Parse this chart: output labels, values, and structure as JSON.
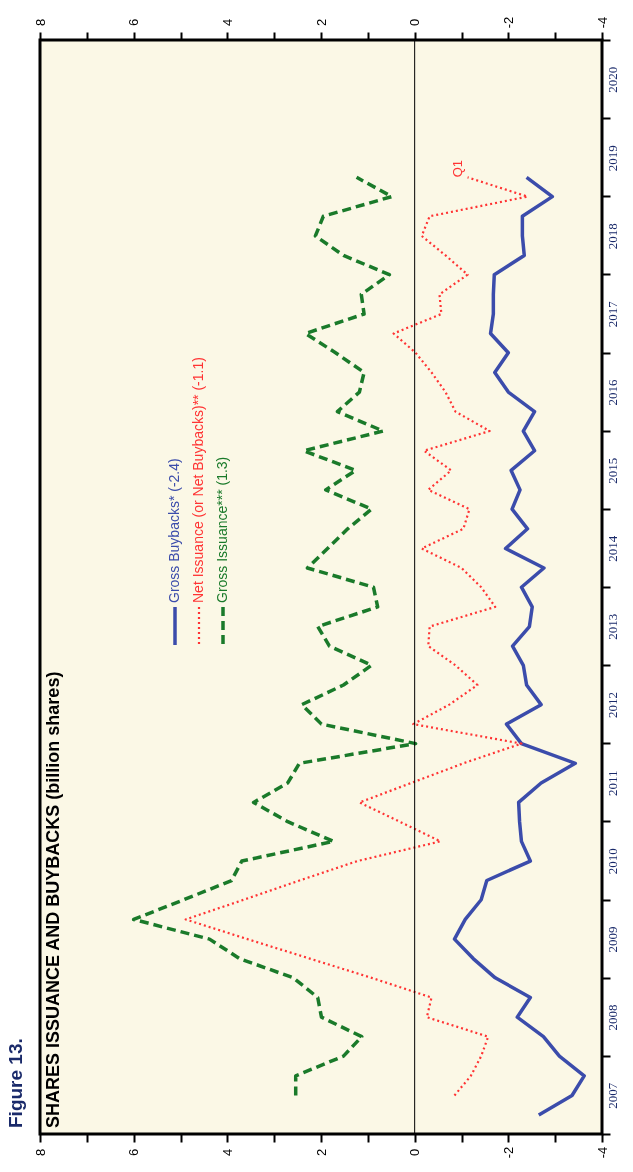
{
  "chart_data": {
    "type": "line",
    "title": "Figure 13.",
    "subtitle": "SHARES ISSUANCE AND BUYBACKS (billion shares)",
    "x": [
      "2007-03-31",
      "2007-06-30",
      "2007-09-30",
      "2007-12-31",
      "2008-03-31",
      "2008-06-30",
      "2008-09-30",
      "2008-12-31",
      "2009-03-31",
      "2009-06-30",
      "2009-09-30",
      "2009-12-31",
      "2010-03-31",
      "2010-06-30",
      "2010-09-30",
      "2010-12-31",
      "2011-03-31",
      "2011-06-30",
      "2011-09-30",
      "2011-12-31",
      "2012-03-31",
      "2012-06-30",
      "2012-09-30",
      "2012-12-31",
      "2013-03-31",
      "2013-06-30",
      "2013-09-30",
      "2013-12-31",
      "2014-03-31",
      "2014-06-30",
      "2014-09-30",
      "2014-12-31",
      "2015-03-31",
      "2015-06-30",
      "2015-09-30",
      "2015-12-31",
      "2016-03-31",
      "2016-06-30",
      "2016-09-30",
      "2016-12-31",
      "2017-03-31",
      "2017-06-30",
      "2017-09-30",
      "2017-12-31",
      "2018-03-31",
      "2018-06-30",
      "2018-09-30",
      "2018-12-31",
      "2019-03-31"
    ],
    "orientation": "horizontal",
    "ylim": [
      "2007-01-01",
      "2021-01-01"
    ],
    "yticks": [
      {
        "value": "2007-01-01",
        "label": null
      },
      {
        "value": "2008-01-01",
        "label": null
      },
      {
        "value": "2009-01-01",
        "label": null
      },
      {
        "value": "2010-01-01",
        "label": null
      },
      {
        "value": "2011-01-01",
        "label": null
      },
      {
        "value": "2012-01-01",
        "label": null
      },
      {
        "value": "2013-01-01",
        "label": null
      },
      {
        "value": "2014-01-01",
        "label": null
      },
      {
        "value": "2015-01-01",
        "label": null
      },
      {
        "value": "2016-01-01",
        "label": null
      },
      {
        "value": "2017-01-01",
        "label": null
      },
      {
        "value": "2018-01-01",
        "label": null
      },
      {
        "value": "2019-01-01",
        "label": null
      },
      {
        "value": "2020-01-01",
        "label": null
      },
      {
        "value": "2021-01-01",
        "label": null
      },
      {
        "value": "2007-07-01",
        "label": "2007"
      },
      {
        "value": "2008-07-01",
        "label": "2008"
      },
      {
        "value": "2009-07-01",
        "label": "2009"
      },
      {
        "value": "2010-07-01",
        "label": "2010"
      },
      {
        "value": "2011-07-01",
        "label": "2011"
      },
      {
        "value": "2012-07-01",
        "label": "2012"
      },
      {
        "value": "2013-07-01",
        "label": "2013"
      },
      {
        "value": "2014-07-01",
        "label": "2014"
      },
      {
        "value": "2015-07-01",
        "label": "2015"
      },
      {
        "value": "2016-07-01",
        "label": "2016"
      },
      {
        "value": "2017-07-01",
        "label": "2017"
      },
      {
        "value": "2018-07-01",
        "label": "2018"
      },
      {
        "value": "2019-07-01",
        "label": "2019"
      },
      {
        "value": "2020-07-01",
        "label": "2020"
      }
    ],
    "xlim": [
      8,
      -4
    ],
    "xticks": [
      -4,
      {
        "value": -3,
        "label": null
      },
      -2,
      {
        "value": -1,
        "label": null
      },
      0,
      {
        "value": 1,
        "label": null
      },
      2,
      {
        "value": 3,
        "label": null
      },
      4,
      {
        "value": 5,
        "label": null
      },
      6,
      {
        "value": 7,
        "label": null
      },
      8
    ],
    "x2lim": [
      8,
      -4
    ],
    "x2ticks": [
      -4,
      {
        "value": -3,
        "label": null
      },
      -2,
      {
        "value": -1,
        "label": null
      },
      0,
      {
        "value": 1,
        "label": null
      },
      2,
      {
        "value": 3,
        "label": null
      },
      4,
      {
        "value": 5,
        "label": null
      },
      6,
      {
        "value": 7,
        "label": null
      },
      8
    ],
    "series": [
      {
        "name": "Gross Buybacks* (-2.4)",
        "color": "#3b4cab",
        "line_style": "solid",
        "values": [
          -2.65,
          -3.36,
          -3.62,
          -3.09,
          -2.75,
          -2.19,
          -2.47,
          -1.72,
          -1.25,
          -0.85,
          -1.08,
          -1.42,
          -1.54,
          -2.47,
          -2.28,
          -2.24,
          -2.22,
          -2.7,
          -3.43,
          -2.28,
          -1.96,
          -2.7,
          -2.39,
          -2.32,
          -2.09,
          -2.45,
          -2.51,
          -2.28,
          -2.76,
          -1.94,
          -2.41,
          -2.08,
          -2.25,
          -2.06,
          -2.56,
          -2.32,
          -2.56,
          -2.0,
          -1.71,
          -2.0,
          -1.62,
          -1.68,
          -1.68,
          -1.7,
          -2.34,
          -2.3,
          -2.3,
          -2.94,
          -2.39
        ]
      },
      {
        "name": "Net Issuance (or Net Buybacks)** (-1.1)",
        "color": "#ff3333",
        "line_style": "dotted",
        "values": [
          null,
          -0.85,
          -1.2,
          -1.42,
          -1.57,
          -0.26,
          -0.36,
          0.92,
          2.24,
          3.57,
          4.89,
          3.65,
          2.46,
          1.22,
          -0.55,
          0.32,
          1.18,
          0.07,
          -1.04,
          -2.28,
          0.03,
          -0.74,
          -1.34,
          -0.87,
          -0.29,
          -0.32,
          -1.72,
          -1.42,
          -1.0,
          -0.15,
          -1.04,
          -1.17,
          -0.29,
          -0.78,
          -0.2,
          -1.6,
          -0.87,
          -0.66,
          -0.36,
          -0.02,
          0.45,
          -0.57,
          -0.53,
          -1.13,
          -0.66,
          -0.15,
          -0.32,
          -2.41,
          -1.13
        ]
      },
      {
        "name": "Gross Issuance*** (1.3)",
        "color": "#1a7a2a",
        "line_style": "dashed",
        "values": [
          null,
          2.54,
          2.54,
          1.52,
          1.13,
          1.99,
          2.07,
          2.59,
          3.74,
          4.38,
          6.0,
          4.93,
          3.91,
          3.69,
          1.73,
          2.71,
          3.44,
          2.71,
          2.46,
          -0.02,
          1.99,
          2.41,
          1.52,
          0.92,
          1.82,
          2.07,
          0.79,
          0.88,
          2.29,
          1.86,
          1.43,
          0.92,
          1.9,
          1.26,
          2.37,
          0.67,
          1.65,
          1.18,
          1.08,
          1.69,
          2.33,
          1.08,
          1.14,
          0.54,
          1.52,
          2.12,
          1.95,
          0.49,
          1.24
        ]
      }
    ],
    "ref_lines": [
      {
        "axis": "x",
        "value": 0,
        "color": "#000000"
      }
    ],
    "annotations": [
      "Q1"
    ],
    "legend": "top",
    "grid": false
  }
}
